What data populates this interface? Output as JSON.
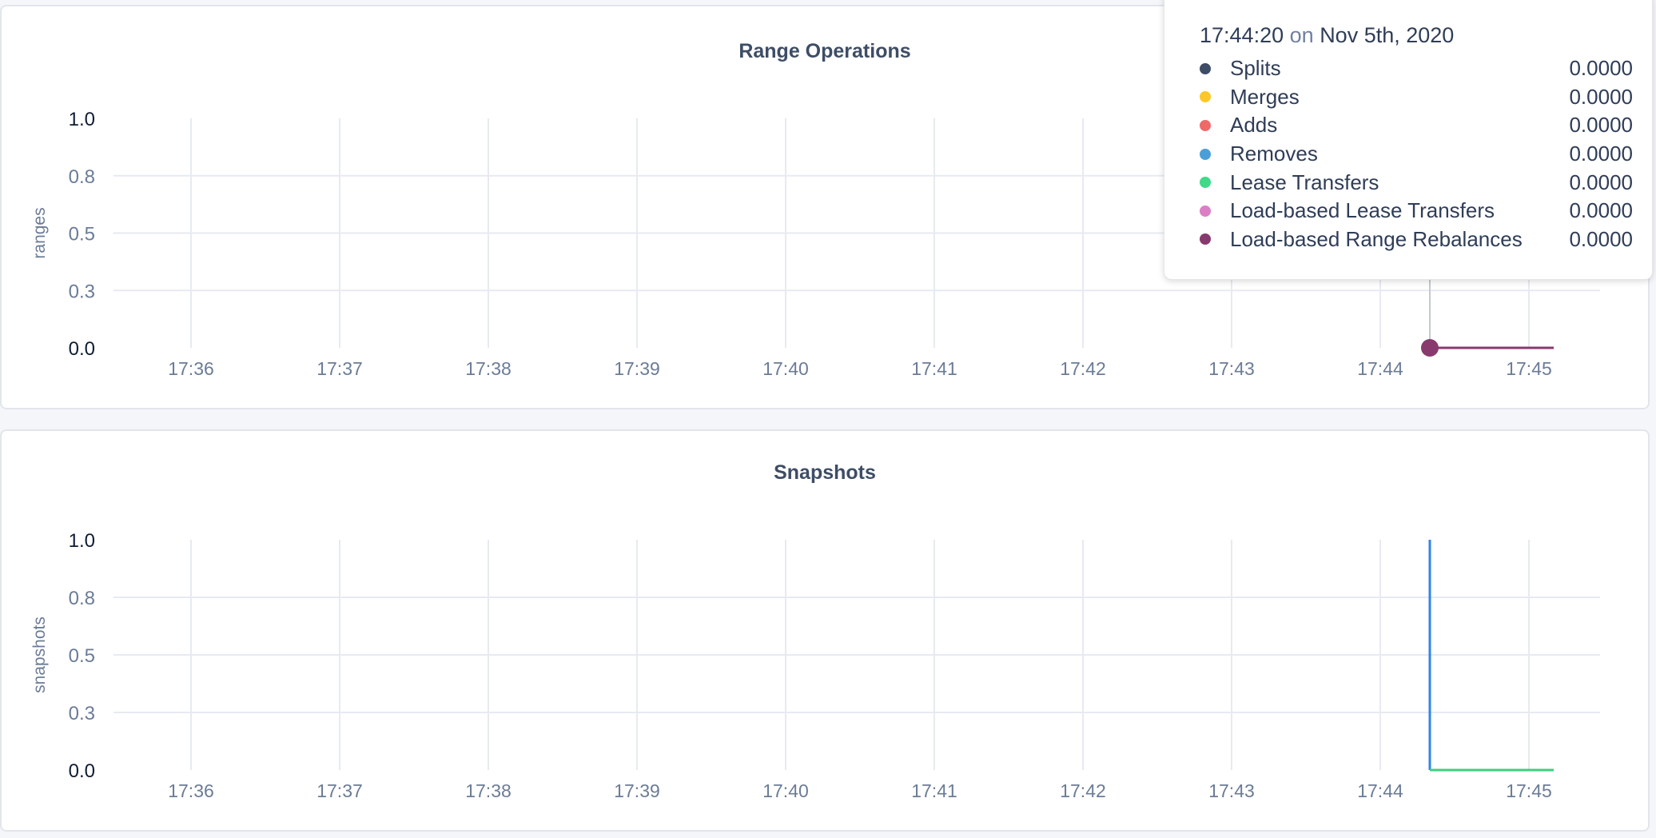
{
  "chart_data": [
    {
      "type": "line",
      "title": "Range Operations",
      "ylabel": "ranges",
      "ylim": [
        0,
        1
      ],
      "y_ticks": [
        0,
        0.25,
        0.5,
        0.75,
        1
      ],
      "y_tick_labels": [
        "0.0",
        "0.3",
        "0.5",
        "0.8",
        "1.0"
      ],
      "x_tick_labels": [
        "17:36",
        "17:37",
        "17:38",
        "17:39",
        "17:40",
        "17:41",
        "17:42",
        "17:43",
        "17:44",
        "17:45"
      ],
      "grid": true,
      "hover_time": "17:44:20",
      "series": [
        {
          "name": "Load-based Range Rebalances",
          "color": "#883a6e",
          "x": [
            "17:44:20",
            "17:45:10"
          ],
          "y": [
            0,
            0
          ]
        }
      ]
    },
    {
      "type": "line",
      "title": "Snapshots",
      "ylabel": "snapshots",
      "ylim": [
        0,
        1
      ],
      "y_ticks": [
        0,
        0.25,
        0.5,
        0.75,
        1
      ],
      "y_tick_labels": [
        "0.0",
        "0.3",
        "0.5",
        "0.8",
        "1.0"
      ],
      "x_tick_labels": [
        "17:36",
        "17:37",
        "17:38",
        "17:39",
        "17:40",
        "17:41",
        "17:42",
        "17:43",
        "17:44",
        "17:45"
      ],
      "grid": true,
      "series": [
        {
          "color": "#2f86ef",
          "x": [
            "17:44:20",
            "17:44:20"
          ],
          "y": [
            1,
            0
          ]
        },
        {
          "color": "#3fcf7e",
          "x": [
            "17:44:20",
            "17:45:10"
          ],
          "y": [
            0,
            0
          ]
        }
      ]
    }
  ],
  "tooltip": {
    "time": "17:44:20",
    "on": "on",
    "date": "Nov 5th, 2020",
    "rows": [
      {
        "label": "Splits",
        "value": "0.0000",
        "color": "#3e4d66"
      },
      {
        "label": "Merges",
        "value": "0.0000",
        "color": "#fcc827"
      },
      {
        "label": "Adds",
        "value": "0.0000",
        "color": "#f06969"
      },
      {
        "label": "Removes",
        "value": "0.0000",
        "color": "#4a9fd8"
      },
      {
        "label": "Lease Transfers",
        "value": "0.0000",
        "color": "#3fd98a"
      },
      {
        "label": "Load-based Lease Transfers",
        "value": "0.0000",
        "color": "#dc7ec6"
      },
      {
        "label": "Load-based Range Rebalances",
        "value": "0.0000",
        "color": "#883a6e"
      }
    ]
  }
}
